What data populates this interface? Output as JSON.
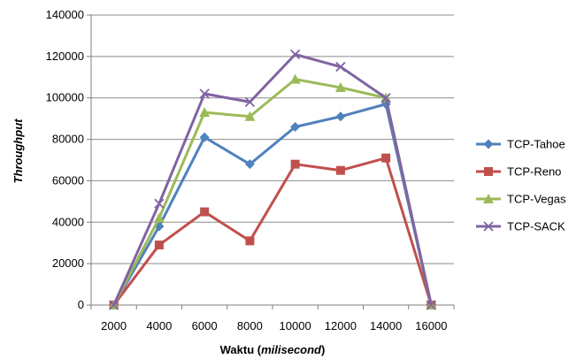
{
  "chart_data": {
    "type": "line",
    "x": [
      2000,
      4000,
      6000,
      8000,
      10000,
      12000,
      14000,
      16000
    ],
    "xlabel_prefix": "Waktu (",
    "xlabel_italic": "milisecond",
    "xlabel_suffix": ")",
    "ylabel": "Throughput",
    "ylim": [
      0,
      140000
    ],
    "yticks": [
      0,
      20000,
      40000,
      60000,
      80000,
      100000,
      120000,
      140000
    ],
    "grid": true,
    "legend_position": "right",
    "series": [
      {
        "name": "TCP-Tahoe",
        "color": "#4f81bd",
        "marker": "diamond",
        "values": [
          0,
          38000,
          81000,
          68000,
          86000,
          91000,
          97000,
          0
        ]
      },
      {
        "name": "TCP-Reno",
        "color": "#c0504d",
        "marker": "square",
        "values": [
          0,
          29000,
          45000,
          31000,
          68000,
          65000,
          71000,
          0
        ]
      },
      {
        "name": "TCP-Vegas",
        "color": "#9bbb59",
        "marker": "triangle",
        "values": [
          0,
          42000,
          93000,
          91000,
          109000,
          105000,
          100000,
          0
        ]
      },
      {
        "name": "TCP-SACK",
        "color": "#8064a2",
        "marker": "x",
        "values": [
          0,
          49000,
          102000,
          98000,
          121000,
          115000,
          100000,
          0
        ]
      }
    ]
  }
}
